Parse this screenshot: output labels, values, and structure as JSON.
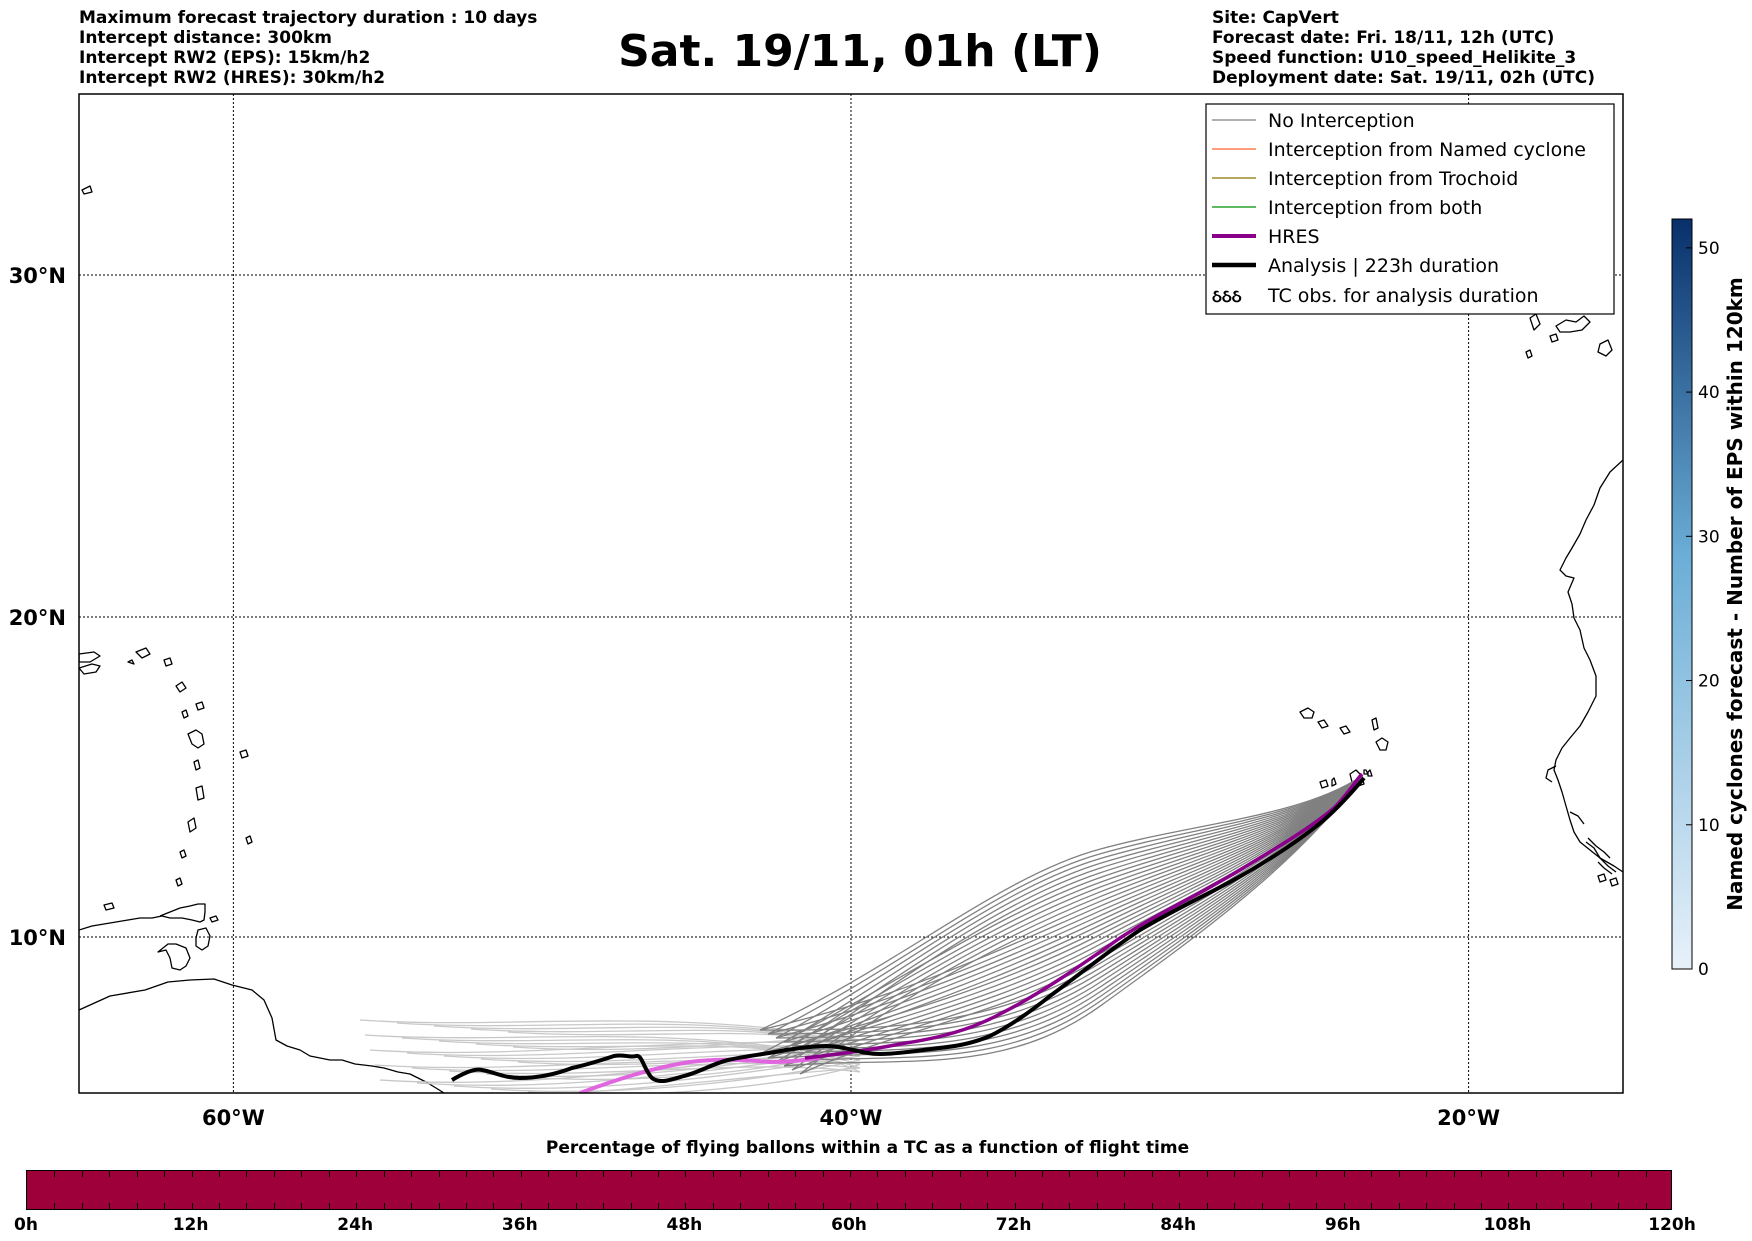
{
  "info_left": [
    "Maximum forecast trajectory duration : 10 days",
    "Intercept distance: 300km",
    "Intercept RW2 (EPS):  15km/h2",
    "Intercept RW2 (HRES): 30km/h2"
  ],
  "info_right": [
    "Site: CapVert",
    "Forecast date: Fri. 18/11, 12h (UTC)",
    "Speed function: U10_speed_Helikite_3",
    "Deployment date: Sat. 19/11, 02h (UTC)"
  ],
  "title": "Sat. 19/11, 01h (LT)",
  "map": {
    "lat_labels": [
      "30°N",
      "20°N",
      "10°N"
    ],
    "lon_labels": [
      "60°W",
      "40°W",
      "20°W"
    ],
    "lon_range": [
      -65,
      -15
    ],
    "lat_range": [
      5.4,
      35
    ],
    "latitudes": [
      30,
      20,
      10
    ],
    "longitudes": [
      -60,
      -40,
      -20
    ],
    "colors": {
      "no_interception": "#808080",
      "named_cyclone": "#ff7f50",
      "trochoid": "#9e8c2b",
      "both": "#2ca02c",
      "hres": "#8b008b",
      "analysis": "#000000"
    }
  },
  "legend": {
    "items": [
      "No Interception",
      "Interception from Named cyclone",
      "Interception from Trochoid",
      "Interception from both",
      "HRES",
      "Analysis | 223h duration",
      "TC obs. for analysis duration"
    ],
    "tc_symbol": "ઠઠઠ"
  },
  "colorbar": {
    "label": "Named cyclones forecast - Number of EPS within 120km",
    "ticks": [
      "0",
      "10",
      "20",
      "30",
      "40",
      "50"
    ],
    "range": [
      0,
      52
    ],
    "color_low": "#e8f1fa",
    "color_high": "#08306b"
  },
  "time_bar": {
    "title": "Percentage of flying ballons within a TC as a function of flight time",
    "labels": [
      "0h",
      "12h",
      "24h",
      "36h",
      "48h",
      "60h",
      "72h",
      "84h",
      "96h",
      "108h",
      "120h"
    ],
    "color": "#9e003a"
  }
}
